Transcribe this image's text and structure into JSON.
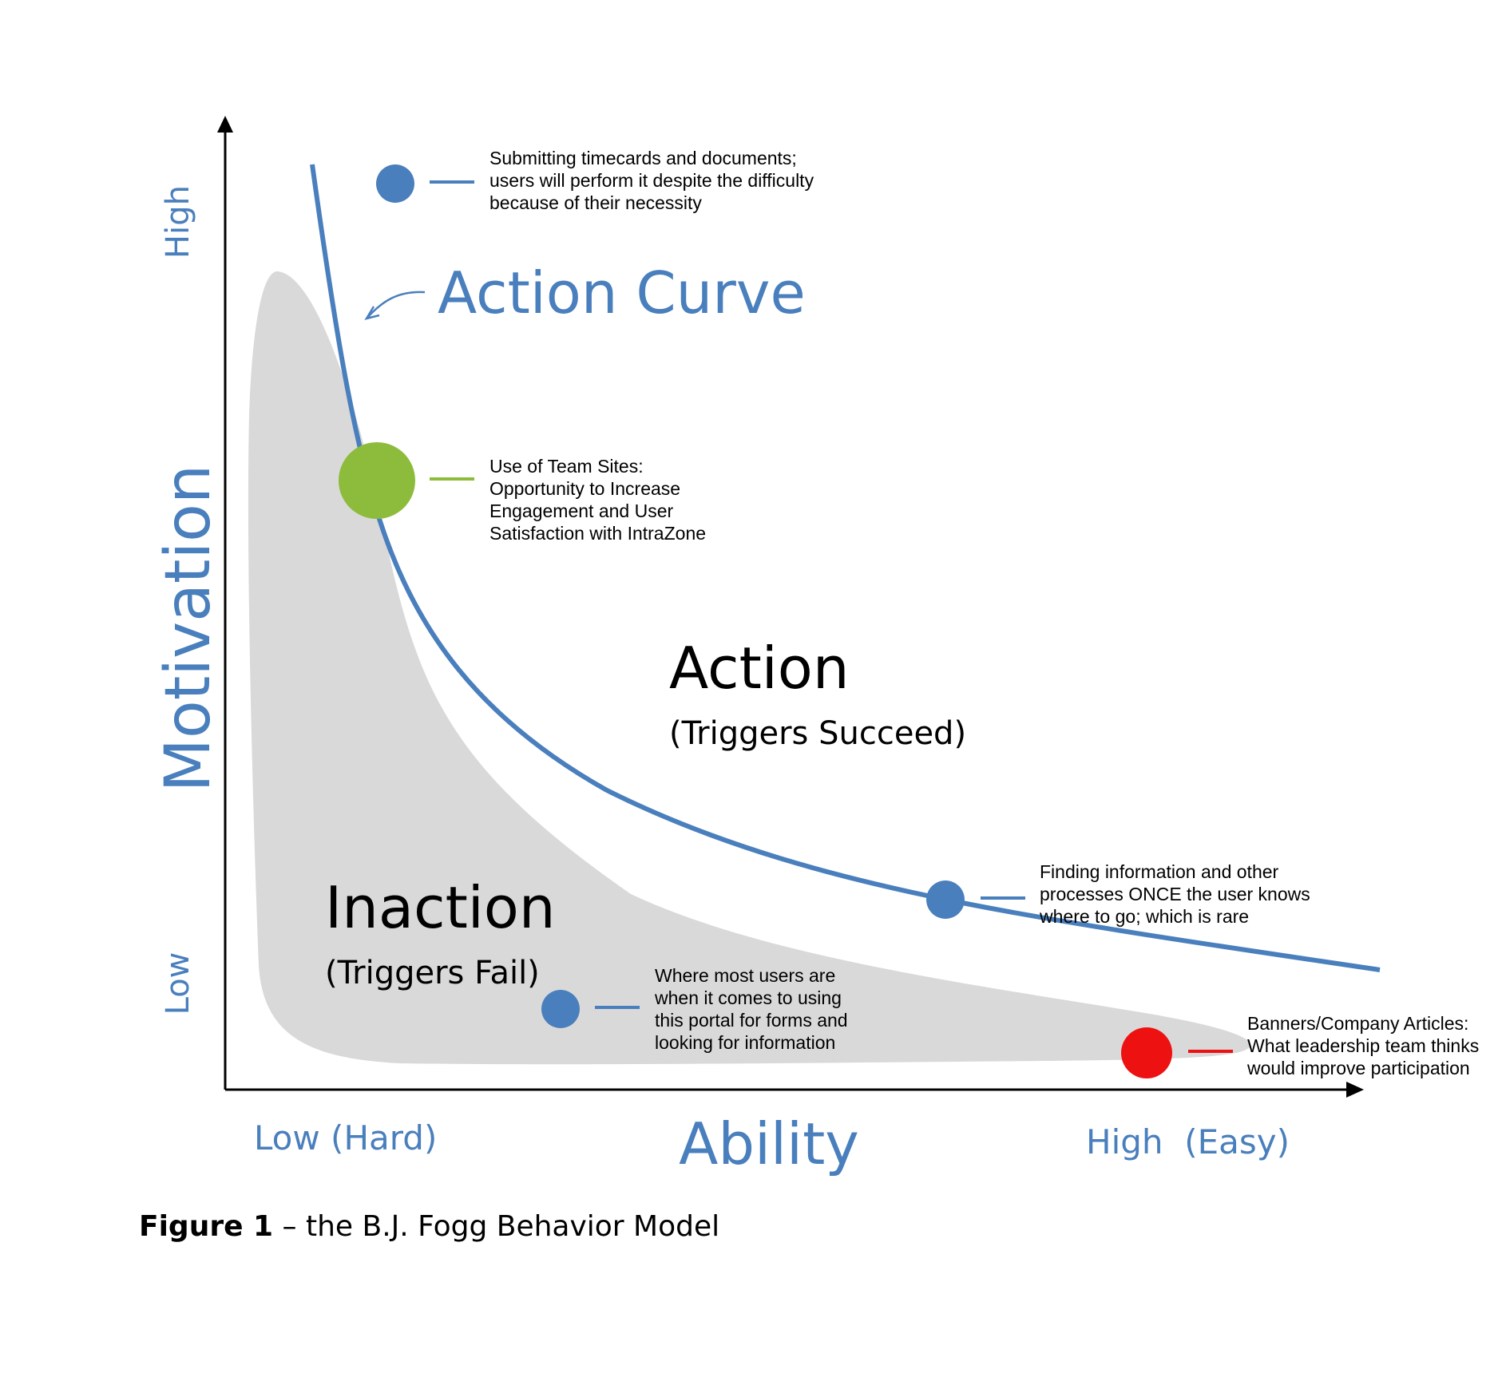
{
  "colors": {
    "blue": "#4a7fbd",
    "green": "#8dbb3b",
    "red": "#ee1111",
    "gray_region": "#d9d9d9",
    "black": "#000000"
  },
  "axes": {
    "y_label": "Motivation",
    "y_high": "High",
    "y_low": "Low",
    "x_label": "Ability",
    "x_low": "Low (Hard)",
    "x_high": "High  (Easy)"
  },
  "action_curve_label": "Action Curve",
  "regions": {
    "action_title": "Action",
    "action_subtitle": "(Triggers Succeed)",
    "inaction_title": "Inaction",
    "inaction_subtitle": "(Triggers Fail)"
  },
  "markers": [
    {
      "id": "timecards",
      "color": "blue",
      "lines": [
        "Submitting timecards and documents;",
        "users will perform it despite the difficulty",
        "because of their necessity"
      ]
    },
    {
      "id": "team-sites",
      "color": "green",
      "lines": [
        "Use of Team Sites:",
        "Opportunity to Increase",
        "Engagement and User",
        "Satisfaction with IntraZone"
      ]
    },
    {
      "id": "finding-info",
      "color": "blue",
      "lines": [
        "Finding information and other",
        "processes ONCE the user knows",
        "where to go; which is rare"
      ]
    },
    {
      "id": "most-users",
      "color": "blue",
      "lines": [
        "Where most users are",
        "when it comes to using",
        "this portal for forms and",
        "looking for information"
      ]
    },
    {
      "id": "banners",
      "color": "red",
      "lines": [
        "Banners/Company Articles:",
        "What leadership team thinks",
        "would improve participation"
      ]
    }
  ],
  "caption": {
    "bold": "Figure 1",
    "rest": " – the B.J. Fogg Behavior Model"
  }
}
